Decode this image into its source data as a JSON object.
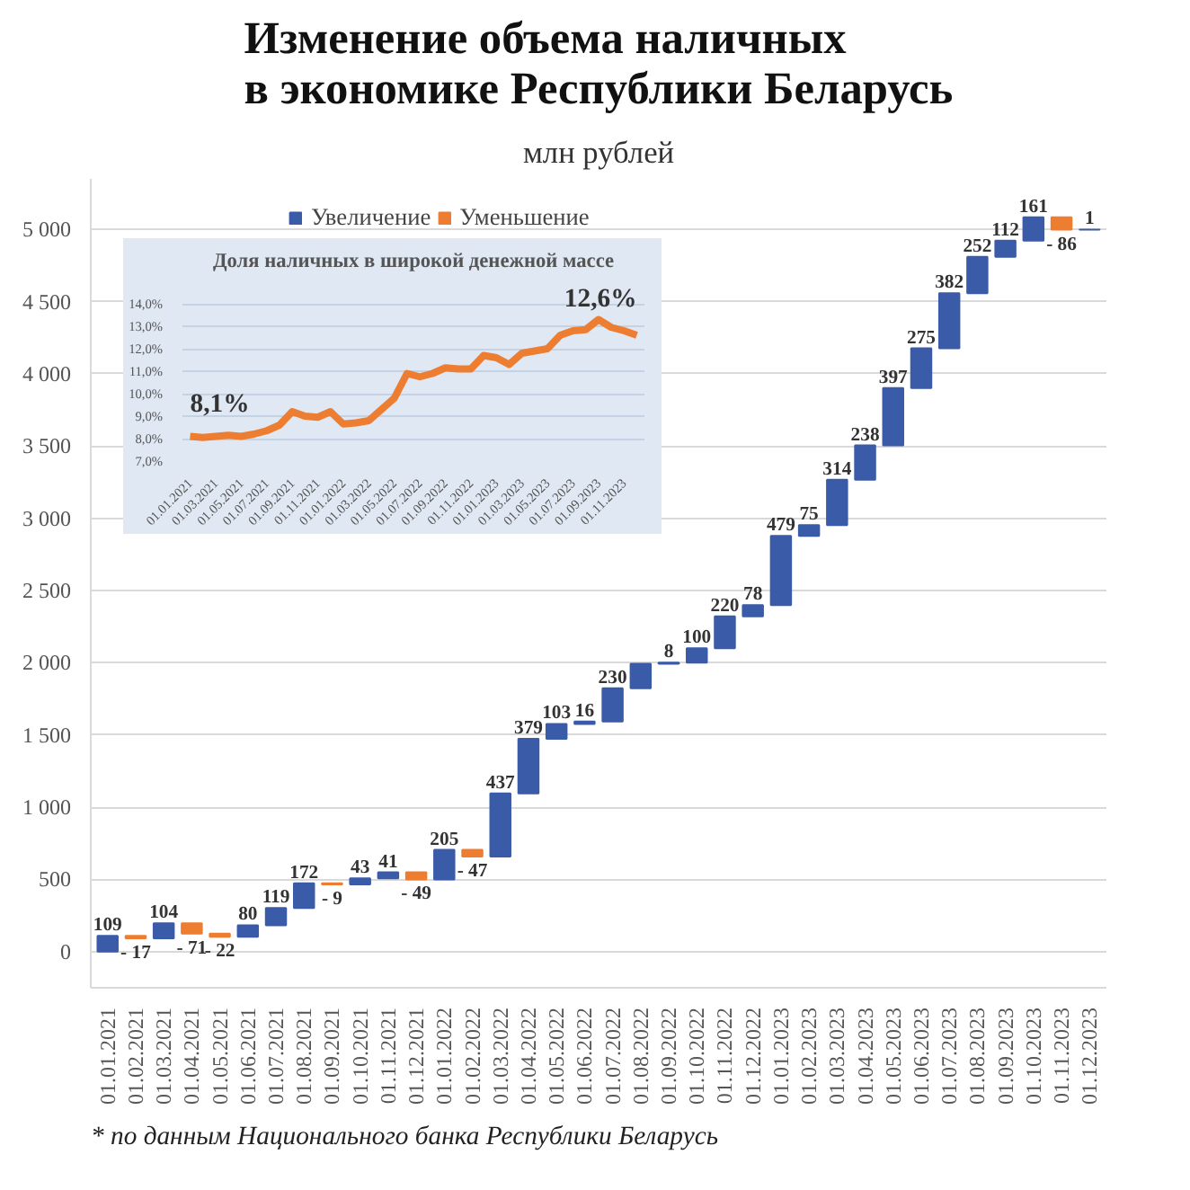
{
  "chart_data": [
    {
      "type": "bar",
      "title": "Изменение объема наличных\nв экономике Республики Беларусь",
      "subtitle": "млн рублей",
      "categories": [
        "01.01.2021",
        "01.02.2021",
        "01.03.2021",
        "01.04.2021",
        "01.05.2021",
        "01.06.2021",
        "01.07.2021",
        "01.08.2021",
        "01.09.2021",
        "01.10.2021",
        "01.11.2021",
        "01.12.2021",
        "01.01.2022",
        "01.02.2022",
        "01.03.2022",
        "01.04.2022",
        "01.05.2022",
        "01.06.2022",
        "01.07.2022",
        "01.08.2022",
        "01.09.2022",
        "01.10.2022",
        "01.11.2022",
        "01.12.2022",
        "01.01.2023",
        "01.02.2023",
        "01.03.2023",
        "01.04.2023",
        "01.05.2023",
        "01.06.2023",
        "01.07.2023",
        "01.08.2023",
        "01.09.2023",
        "01.10.2023",
        "01.11.2023",
        "01.12.2023"
      ],
      "series": [
        {
          "name": "Увеличение",
          "color": "#3a5ba8",
          "values": [
            109,
            null,
            104,
            null,
            null,
            80,
            119,
            172,
            null,
            43,
            41,
            null,
            205,
            null,
            437,
            379,
            103,
            16,
            230,
            170,
            8,
            100,
            220,
            78,
            479,
            75,
            314,
            238,
            397,
            275,
            382,
            252,
            112,
            161,
            null,
            1
          ],
          "base": [
            0,
            null,
            92,
            null,
            null,
            103,
            183,
            302,
            null,
            465,
            508,
            null,
            500,
            null,
            658,
            1095,
            1474,
            1577,
            1593,
            1823,
            1993,
            2001,
            2101,
            2321,
            2399,
            2878,
            2953,
            3267,
            3505,
            3902,
            4177,
            4559,
            4811,
            4923,
            null,
            4998
          ],
          "value_labels": [
            "109",
            null,
            "104",
            null,
            null,
            "80",
            "119",
            "172",
            null,
            "43",
            "41",
            null,
            "205",
            null,
            "437",
            "379",
            "103",
            "16",
            "230",
            null,
            "8",
            "100",
            "220",
            "78",
            "479",
            "75",
            "314",
            "238",
            "397",
            "275",
            "382",
            "252",
            "112",
            "161",
            null,
            "1"
          ]
        },
        {
          "name": "Уменьшение",
          "color": "#ed7d31",
          "values": [
            null,
            -17,
            null,
            -71,
            -22,
            null,
            null,
            null,
            -9,
            null,
            null,
            -49,
            null,
            -47,
            null,
            null,
            null,
            null,
            null,
            null,
            null,
            null,
            null,
            null,
            null,
            null,
            null,
            null,
            null,
            null,
            null,
            null,
            null,
            null,
            -86,
            null
          ],
          "base": [
            null,
            109,
            null,
            196,
            125,
            null,
            null,
            null,
            474,
            null,
            null,
            549,
            null,
            705,
            null,
            null,
            null,
            null,
            null,
            null,
            null,
            null,
            null,
            null,
            null,
            null,
            null,
            null,
            null,
            null,
            null,
            null,
            null,
            null,
            5084,
            null
          ],
          "value_labels": [
            null,
            "- 17",
            null,
            "- 71",
            "- 22",
            null,
            null,
            null,
            "- 9",
            null,
            null,
            "- 49",
            null,
            "- 47",
            null,
            null,
            null,
            null,
            null,
            null,
            null,
            null,
            null,
            null,
            null,
            null,
            null,
            null,
            null,
            null,
            null,
            null,
            null,
            null,
            "- 86",
            null
          ]
        }
      ],
      "ylim": [
        -250,
        5350
      ],
      "yticks": [
        {
          "value": 0,
          "label": "0"
        },
        {
          "value": 500,
          "label": "500"
        },
        {
          "value": 1000,
          "label": "1 000"
        },
        {
          "value": 1500,
          "label": "1 500"
        },
        {
          "value": 2000,
          "label": "2 000"
        },
        {
          "value": 2500,
          "label": "2 500"
        },
        {
          "value": 3000,
          "label": "3 000"
        },
        {
          "value": 3500,
          "label": "3 500"
        },
        {
          "value": 4000,
          "label": "4 000"
        },
        {
          "value": 4500,
          "label": "4 500"
        },
        {
          "value": 5000,
          "label": "5 000"
        }
      ],
      "grid": "y",
      "legend": "top",
      "annotations": [
        "* по данным Национального банка Республики Беларусь"
      ]
    },
    {
      "type": "line",
      "title": "Доля наличных в широкой денежной массе",
      "categories": [
        "01.01.2021",
        null,
        "01.03.2021",
        null,
        "01.05.2021",
        null,
        "01.07.2021",
        null,
        "01.09.2021",
        null,
        "01.11.2021",
        null,
        "01.01.2022",
        null,
        "01.03.2022",
        null,
        "01.05.2022",
        null,
        "01.07.2022",
        null,
        "01.09.2022",
        null,
        "01.11.2022",
        null,
        "01.01.2023",
        null,
        "01.03.2023",
        null,
        "01.05.2023",
        null,
        "01.07.2023",
        null,
        "01.09.2023",
        null,
        "01.11.2023",
        null
      ],
      "series": [
        {
          "color": "#ed7d31",
          "values": [
            8.1,
            8.05,
            8.1,
            8.15,
            8.1,
            8.2,
            8.35,
            8.6,
            9.2,
            9.0,
            8.95,
            9.2,
            8.65,
            8.7,
            8.8,
            9.3,
            9.8,
            10.9,
            10.75,
            10.9,
            11.15,
            11.1,
            11.1,
            11.7,
            11.6,
            11.3,
            11.8,
            11.9,
            12.0,
            12.6,
            12.8,
            12.85,
            13.3,
            12.95,
            12.8,
            12.6
          ]
        }
      ],
      "ylim": [
        7,
        15
      ],
      "yticks": [
        {
          "value": 7,
          "label": "7,0%"
        },
        {
          "value": 8,
          "label": "8,0%"
        },
        {
          "value": 9,
          "label": "9,0%"
        },
        {
          "value": 10,
          "label": "10,0%"
        },
        {
          "value": 11,
          "label": "11,0%"
        },
        {
          "value": 12,
          "label": "12,0%"
        },
        {
          "value": 13,
          "label": "13,0%"
        },
        {
          "value": 14,
          "label": "14,0%"
        }
      ],
      "grid": "y",
      "line_style": "solid",
      "annotations": [
        {
          "text": "8,1%",
          "x": "01.01.2021",
          "y": 8.1
        },
        "12,6%"
      ]
    }
  ]
}
